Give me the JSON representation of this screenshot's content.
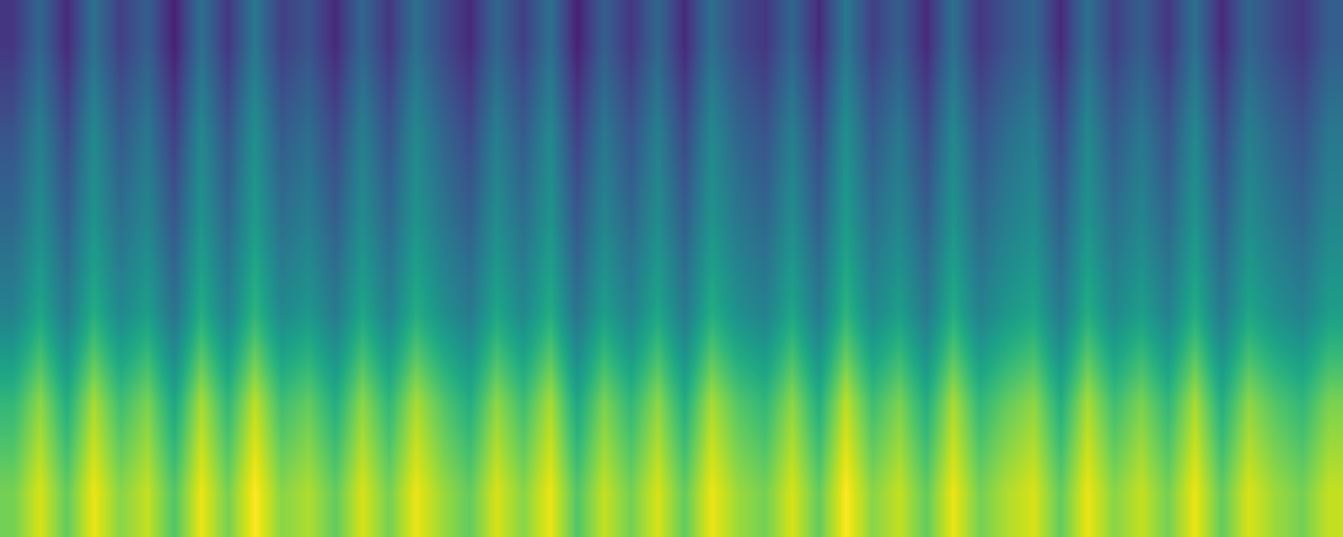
{
  "chart_data": {
    "type": "heatmap",
    "color": "viridis",
    "clim": [
      0,
      1
    ],
    "tick_labels": false,
    "cells": [
      [
        0.16,
        0.33,
        0.12,
        0.37,
        0.19,
        0.3,
        0.09,
        0.37,
        0.16,
        0.4,
        0.19,
        0.26,
        0.12,
        0.33,
        0.16,
        0.37,
        0.23,
        0.12,
        0.33,
        0.19,
        0.37,
        0.09,
        0.3,
        0.16,
        0.33,
        0.12,
        0.37,
        0.23,
        0.16,
        0.33,
        0.12,
        0.4,
        0.19,
        0.3,
        0.12,
        0.37,
        0.16,
        0.26,
        0.33,
        0.12,
        0.37,
        0.19,
        0.3,
        0.16,
        0.37,
        0.12,
        0.33,
        0.23,
        0.16,
        0.3
      ],
      [
        0.26,
        0.43,
        0.22,
        0.47,
        0.29,
        0.4,
        0.19,
        0.47,
        0.26,
        0.5,
        0.29,
        0.36,
        0.22,
        0.43,
        0.26,
        0.47,
        0.33,
        0.22,
        0.43,
        0.29,
        0.47,
        0.19,
        0.4,
        0.26,
        0.43,
        0.22,
        0.47,
        0.33,
        0.26,
        0.43,
        0.22,
        0.5,
        0.29,
        0.4,
        0.22,
        0.47,
        0.26,
        0.36,
        0.43,
        0.22,
        0.47,
        0.29,
        0.4,
        0.26,
        0.47,
        0.22,
        0.43,
        0.33,
        0.26,
        0.4
      ],
      [
        0.34,
        0.49,
        0.31,
        0.52,
        0.37,
        0.46,
        0.28,
        0.52,
        0.34,
        0.55,
        0.37,
        0.43,
        0.31,
        0.49,
        0.34,
        0.52,
        0.4,
        0.31,
        0.49,
        0.37,
        0.52,
        0.28,
        0.46,
        0.34,
        0.49,
        0.31,
        0.52,
        0.4,
        0.34,
        0.49,
        0.31,
        0.55,
        0.37,
        0.46,
        0.31,
        0.52,
        0.34,
        0.43,
        0.49,
        0.31,
        0.52,
        0.37,
        0.46,
        0.34,
        0.52,
        0.31,
        0.49,
        0.4,
        0.34,
        0.46
      ],
      [
        0.44,
        0.59,
        0.41,
        0.62,
        0.47,
        0.56,
        0.38,
        0.62,
        0.44,
        0.65,
        0.47,
        0.53,
        0.41,
        0.59,
        0.44,
        0.62,
        0.5,
        0.41,
        0.59,
        0.47,
        0.62,
        0.38,
        0.56,
        0.44,
        0.59,
        0.41,
        0.62,
        0.5,
        0.44,
        0.59,
        0.41,
        0.65,
        0.47,
        0.56,
        0.41,
        0.62,
        0.44,
        0.53,
        0.59,
        0.41,
        0.62,
        0.47,
        0.56,
        0.44,
        0.62,
        0.41,
        0.59,
        0.5,
        0.44,
        0.56
      ],
      [
        0.66,
        0.83,
        0.62,
        0.87,
        0.69,
        0.8,
        0.59,
        0.87,
        0.66,
        0.9,
        0.69,
        0.76,
        0.62,
        0.83,
        0.66,
        0.87,
        0.73,
        0.62,
        0.83,
        0.69,
        0.87,
        0.59,
        0.8,
        0.66,
        0.83,
        0.62,
        0.87,
        0.73,
        0.66,
        0.83,
        0.62,
        0.9,
        0.69,
        0.8,
        0.62,
        0.87,
        0.66,
        0.76,
        0.83,
        0.62,
        0.87,
        0.69,
        0.8,
        0.66,
        0.87,
        0.62,
        0.83,
        0.73,
        0.66,
        0.8
      ],
      [
        0.79,
        0.94,
        0.76,
        0.97,
        0.82,
        0.91,
        0.73,
        0.97,
        0.79,
        1.0,
        0.82,
        0.88,
        0.76,
        0.94,
        0.79,
        0.97,
        0.85,
        0.76,
        0.94,
        0.82,
        0.97,
        0.73,
        0.91,
        0.79,
        0.94,
        0.76,
        0.97,
        0.85,
        0.79,
        0.94,
        0.76,
        1.0,
        0.82,
        0.91,
        0.76,
        0.97,
        0.79,
        0.88,
        0.94,
        0.76,
        0.97,
        0.82,
        0.91,
        0.79,
        0.97,
        0.76,
        0.94,
        0.85,
        0.79,
        0.91
      ]
    ]
  }
}
